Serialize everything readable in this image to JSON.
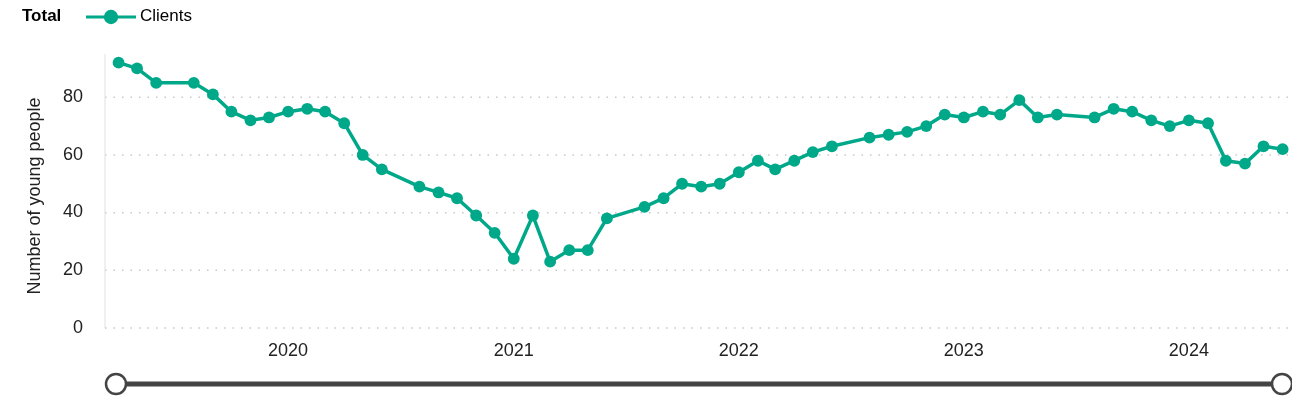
{
  "chart_data": {
    "type": "line",
    "ylabel": "Number of young people",
    "legend_title": "Total",
    "legend": "top left",
    "grid": "y",
    "marker": "circle",
    "line_style": "solid",
    "x": [
      "2019-04",
      "2019-05",
      "2019-06",
      "2019-08",
      "2019-09",
      "2019-10",
      "2019-11",
      "2019-12",
      "2020-01",
      "2020-02",
      "2020-03",
      "2020-04",
      "2020-05",
      "2020-06",
      "2020-08",
      "2020-09",
      "2020-10",
      "2020-11",
      "2020-12",
      "2021-01",
      "2021-02",
      "2021-03",
      "2021-04",
      "2021-05",
      "2021-06",
      "2021-08",
      "2021-09",
      "2021-10",
      "2021-11",
      "2021-12",
      "2022-01",
      "2022-02",
      "2022-03",
      "2022-04",
      "2022-05",
      "2022-06",
      "2022-08",
      "2022-09",
      "2022-10",
      "2022-11",
      "2022-12",
      "2023-01",
      "2023-02",
      "2023-03",
      "2023-04",
      "2023-05",
      "2023-06",
      "2023-08",
      "2023-09",
      "2023-10",
      "2023-11",
      "2023-12",
      "2024-01",
      "2024-02",
      "2024-03",
      "2024-04",
      "2024-05",
      "2024-06"
    ],
    "series": [
      {
        "name": "Clients",
        "color": "#00a88a",
        "values": [
          92,
          90,
          85,
          85,
          81,
          75,
          72,
          73,
          75,
          76,
          75,
          71,
          60,
          55,
          49,
          47,
          45,
          39,
          33,
          24,
          39,
          23,
          27,
          27,
          38,
          42,
          45,
          50,
          49,
          50,
          54,
          58,
          55,
          58,
          61,
          63,
          66,
          67,
          68,
          70,
          74,
          73,
          75,
          74,
          79,
          73,
          74,
          73,
          76,
          75,
          72,
          70,
          72,
          71,
          58,
          57,
          63,
          62
        ]
      }
    ],
    "xlim": [
      "2019-03-10",
      "2024-06-13"
    ],
    "xticks": [
      {
        "value": "2020",
        "label": "2020"
      },
      {
        "value": "2021",
        "label": "2021"
      },
      {
        "value": "2022",
        "label": "2022"
      },
      {
        "value": "2023",
        "label": "2023"
      },
      {
        "value": "2024",
        "label": "2024"
      }
    ],
    "ylim": [
      0,
      95
    ],
    "yticks": [
      0,
      20,
      40,
      60,
      80
    ]
  }
}
